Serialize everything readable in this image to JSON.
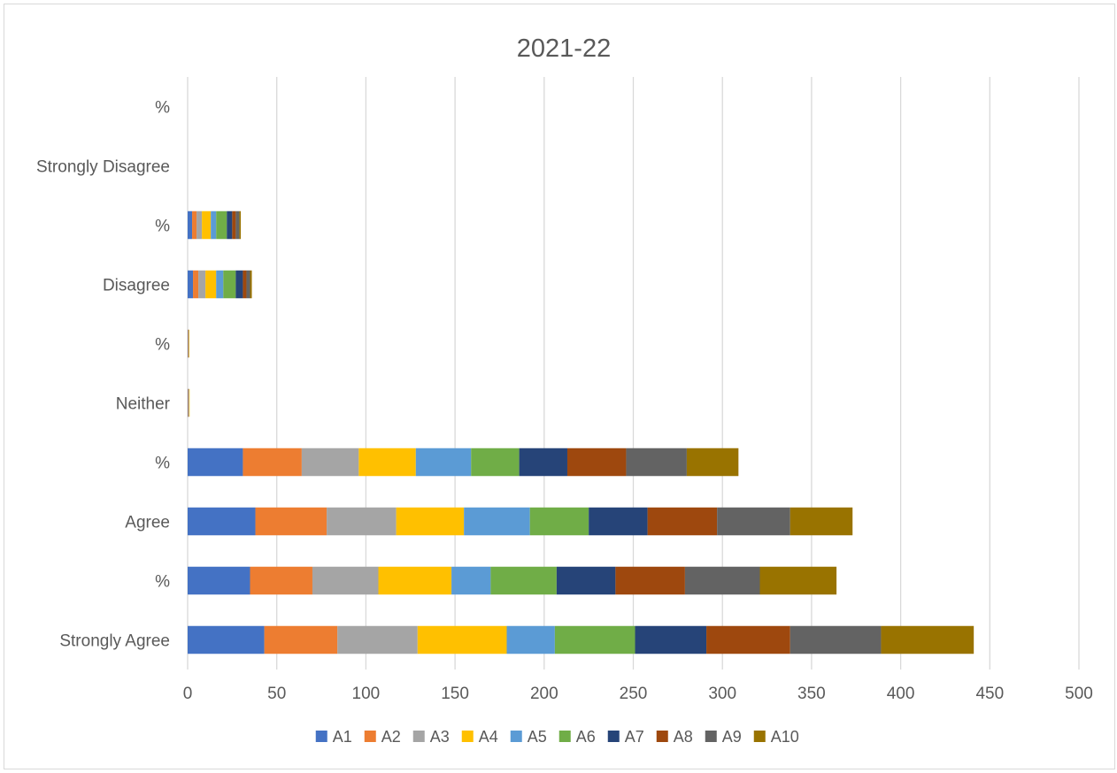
{
  "chart_data": {
    "type": "bar",
    "orientation": "horizontal",
    "stacked": true,
    "title": "2021-22",
    "xlabel": "",
    "ylabel": "",
    "xlim": [
      0,
      500
    ],
    "x_ticks": [
      "0",
      "50",
      "100",
      "150",
      "200",
      "250",
      "300",
      "350",
      "400",
      "450",
      "500"
    ],
    "grid": true,
    "legend_position": "bottom",
    "categories": [
      "Strongly Agree",
      "%",
      "Agree",
      "%",
      "Neither",
      "%",
      "Disagree",
      "%",
      "Strongly Disagree",
      "%"
    ],
    "series": [
      {
        "name": "A1",
        "color": "#4472C4",
        "values": [
          43,
          35,
          38,
          31,
          0.2,
          0.2,
          3,
          2.5,
          0,
          0
        ]
      },
      {
        "name": "A2",
        "color": "#ED7D31",
        "values": [
          41,
          35,
          40,
          33,
          0.2,
          0.2,
          3,
          2.5,
          0,
          0
        ]
      },
      {
        "name": "A3",
        "color": "#A5A5A5",
        "values": [
          45,
          37,
          39,
          32,
          0.4,
          0.3,
          4,
          3,
          0,
          0
        ]
      },
      {
        "name": "A4",
        "color": "#FFC000",
        "values": [
          50,
          41,
          38,
          32,
          0.2,
          0.2,
          6,
          5,
          0,
          0
        ]
      },
      {
        "name": "A5",
        "color": "#5B9BD5",
        "values": [
          27,
          22,
          37,
          31,
          0,
          0,
          4,
          3,
          0,
          0
        ]
      },
      {
        "name": "A6",
        "color": "#70AD47",
        "values": [
          45,
          37,
          33,
          27,
          0,
          0,
          7,
          6,
          0,
          0
        ]
      },
      {
        "name": "A7",
        "color": "#264478",
        "values": [
          40,
          33,
          33,
          27,
          0,
          0,
          4,
          3,
          0,
          0
        ]
      },
      {
        "name": "A8",
        "color": "#9E480E",
        "values": [
          47,
          39,
          39,
          33,
          0,
          0,
          2,
          2,
          0,
          0
        ]
      },
      {
        "name": "A9",
        "color": "#636363",
        "values": [
          51,
          42,
          41,
          34,
          0,
          0,
          2,
          2,
          0,
          0
        ]
      },
      {
        "name": "A10",
        "color": "#997300",
        "values": [
          52,
          43,
          35,
          29,
          0,
          0,
          1,
          0.8,
          0,
          0
        ]
      }
    ]
  }
}
